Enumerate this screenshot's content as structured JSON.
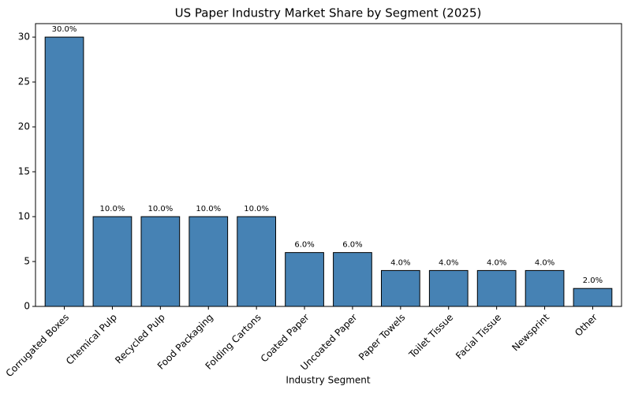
{
  "chart_data": {
    "type": "bar",
    "title": "US Paper Industry Market Share by Segment (2025)",
    "x_label": "Industry Segment",
    "categories": [
      "Corrugated Boxes",
      "Chemical Pulp",
      "Recycled Pulp",
      "Food Packaging",
      "Folding Cartons",
      "Coated Paper",
      "Uncoated Paper",
      "Paper Towels",
      "Toilet Tissue",
      "Facial Tissue",
      "Newsprint",
      "Other"
    ],
    "values": [
      30,
      10,
      10,
      10,
      10,
      6,
      6,
      4,
      4,
      4,
      4,
      2
    ],
    "value_labels": [
      "30.0%",
      "10.0%",
      "10.0%",
      "10.0%",
      "10.0%",
      "6.0%",
      "6.0%",
      "4.0%",
      "4.0%",
      "4.0%",
      "4.0%",
      "2.0%"
    ],
    "color": "#4682b4",
    "ylim": [
      0,
      31.5
    ],
    "yticks": [
      0,
      5,
      10,
      15,
      20,
      25,
      30
    ],
    "grid": false
  }
}
